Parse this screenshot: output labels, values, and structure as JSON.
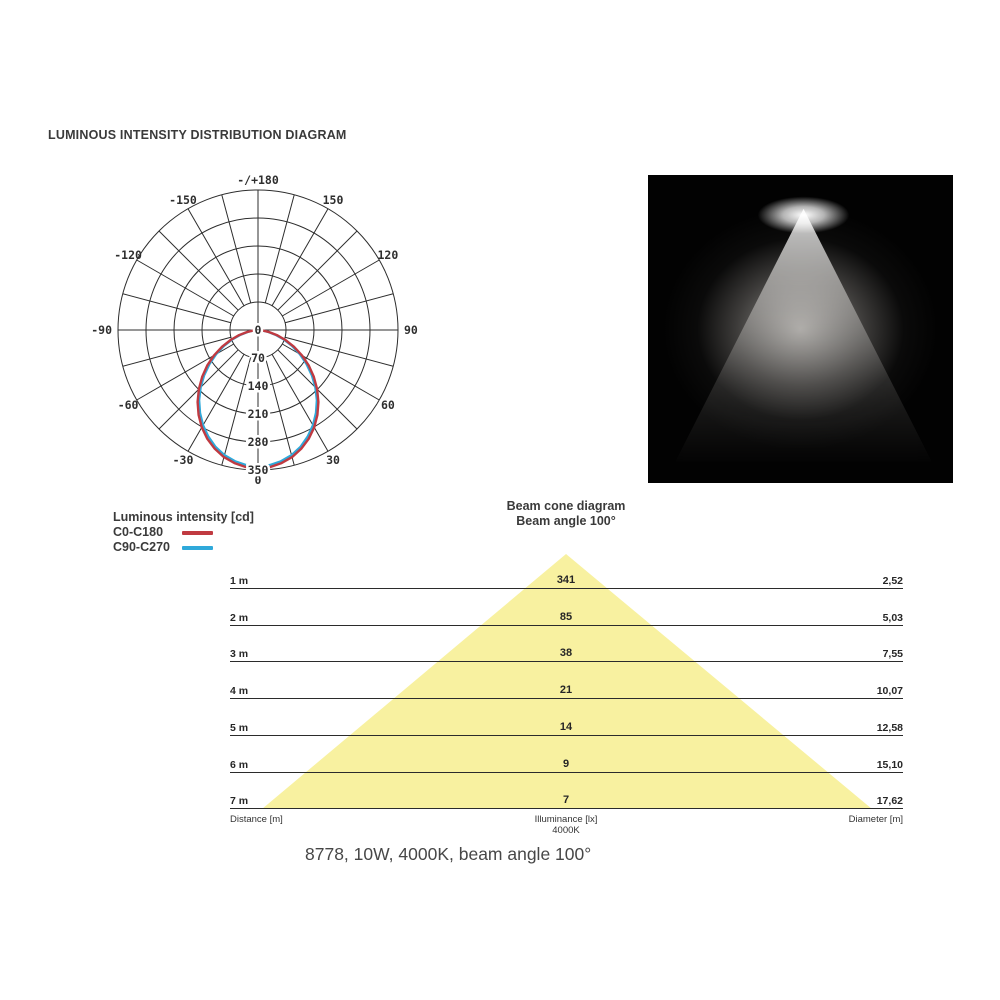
{
  "title": "LUMINOUS INTENSITY DISTRIBUTION DIAGRAM",
  "caption": "8778, 10W, 4000K, beam angle 100°",
  "colors": {
    "c0_red": "#c03a41",
    "c90_blue": "#2fa9da",
    "cone_yellow": "#f8f1a0",
    "grid_dark": "#2d2d2d"
  },
  "legend": {
    "title": "Luminous intensity [cd]",
    "series": [
      {
        "label": "C0-C180",
        "color": "#c03a41"
      },
      {
        "label": "C90-C270",
        "color": "#2fa9da"
      }
    ]
  },
  "beam": {
    "title": "Beam cone diagram",
    "subtitle": "Beam angle 100°",
    "footer": {
      "left": "Distance [m]",
      "center_line1": "Illuminance [lx]",
      "center_line2": "4000K",
      "right": "Diameter [m]"
    }
  },
  "chart_data": [
    {
      "type": "line",
      "subtype": "polar-photometric",
      "title": "Luminous intensity [cd]",
      "radial_ticks_cd": [
        0,
        70,
        140,
        210,
        280,
        350
      ],
      "radial_max_cd": 350,
      "angle_grid_step_deg": 15,
      "angle_labels": [
        {
          "deg": 180,
          "label": "-/+180"
        },
        {
          "deg": 150,
          "label": "150"
        },
        {
          "deg": -150,
          "label": "-150"
        },
        {
          "deg": 120,
          "label": "120"
        },
        {
          "deg": -120,
          "label": "-120"
        },
        {
          "deg": 90,
          "label": "90"
        },
        {
          "deg": -90,
          "label": "-90"
        },
        {
          "deg": 60,
          "label": "60"
        },
        {
          "deg": -60,
          "label": "-60"
        },
        {
          "deg": 30,
          "label": "30"
        },
        {
          "deg": -30,
          "label": "-30"
        },
        {
          "deg": 0,
          "label": "0"
        }
      ],
      "series": [
        {
          "name": "C90-C270",
          "color": "#2fa9da",
          "symmetric": true,
          "angles_deg": [
            0,
            5,
            10,
            15,
            20,
            25,
            30,
            35,
            40,
            45,
            50,
            55,
            60,
            65,
            70,
            75,
            80,
            85,
            90
          ],
          "intensity_cd": [
            341,
            339,
            333,
            324,
            311,
            294,
            275,
            253,
            229,
            203,
            176,
            148,
            121,
            94,
            68,
            45,
            25,
            9,
            0
          ]
        },
        {
          "name": "C0-C180",
          "color": "#c03a41",
          "symmetric": true,
          "angles_deg": [
            0,
            5,
            10,
            15,
            20,
            25,
            30,
            35,
            40,
            45,
            50,
            55,
            60,
            65,
            70,
            75,
            80,
            85,
            90
          ],
          "intensity_cd": [
            346,
            344,
            338,
            329,
            316,
            300,
            281,
            259,
            235,
            209,
            182,
            155,
            127,
            99,
            73,
            49,
            27,
            10,
            0
          ]
        }
      ]
    },
    {
      "type": "table",
      "title": "Beam cone diagram",
      "subtitle": "Beam angle 100°",
      "columns": [
        "Distance [m]",
        "Illuminance [lx] 4000K",
        "Diameter [m]"
      ],
      "rows": [
        [
          "1 m",
          "341",
          "2,52"
        ],
        [
          "2 m",
          "85",
          "5,03"
        ],
        [
          "3 m",
          "38",
          "7,55"
        ],
        [
          "4 m",
          "21",
          "10,07"
        ],
        [
          "5 m",
          "14",
          "12,58"
        ],
        [
          "6 m",
          "9",
          "15,10"
        ],
        [
          "7 m",
          "7",
          "17,62"
        ]
      ]
    }
  ]
}
